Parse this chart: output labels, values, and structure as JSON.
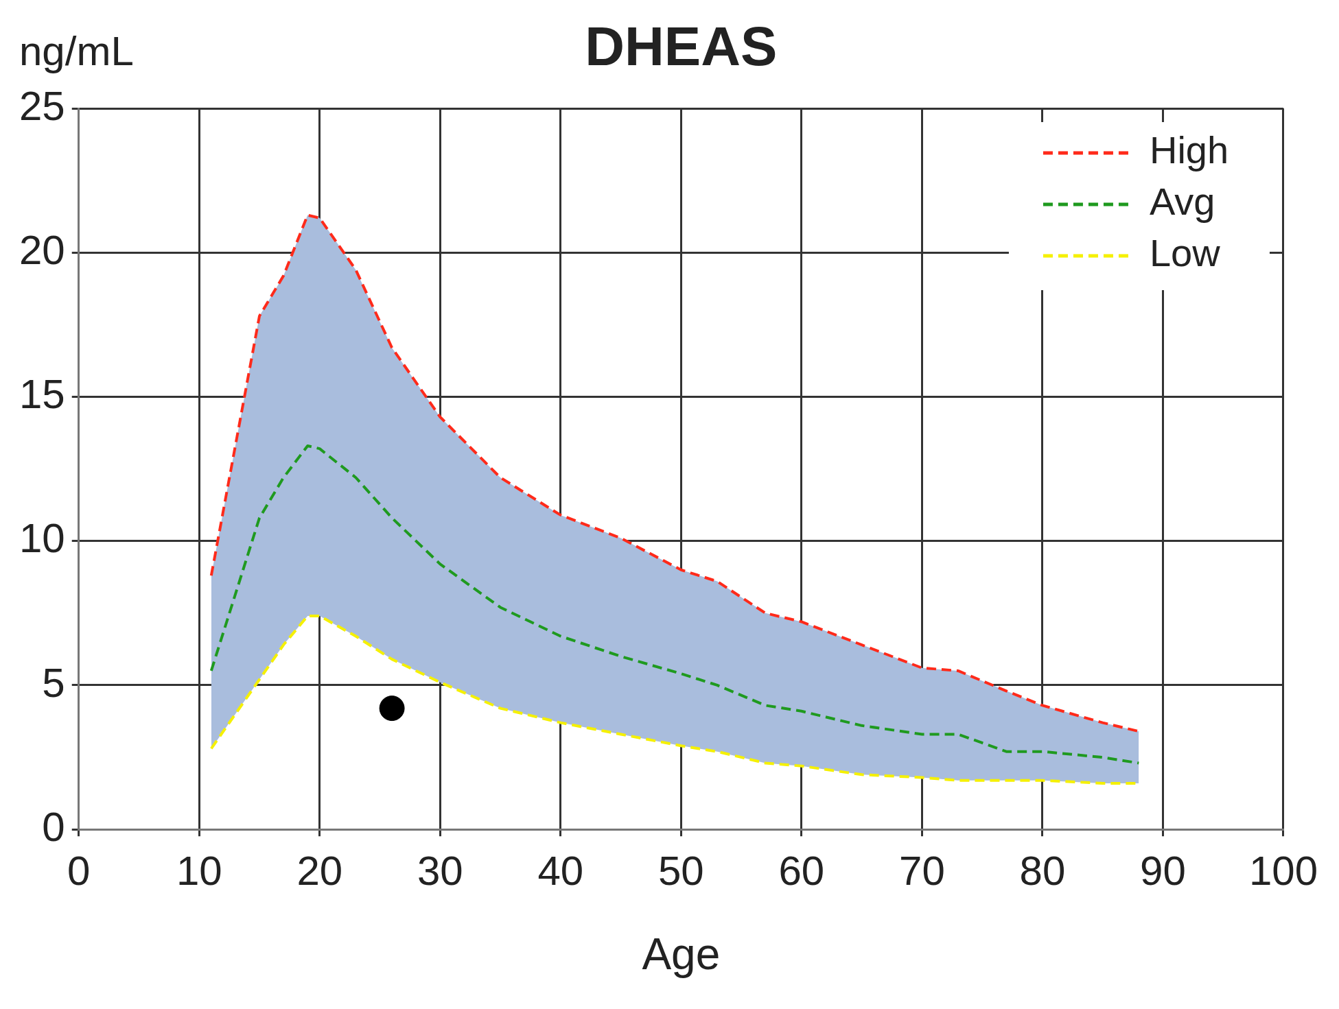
{
  "chart_data": {
    "type": "line",
    "title": "DHEAS",
    "xlabel": "Age",
    "ylabel": "ng/mL",
    "xlim": [
      0,
      100
    ],
    "xticks": [
      0,
      10,
      20,
      30,
      40,
      50,
      60,
      70,
      80,
      90,
      100
    ],
    "ylim": [
      0,
      25
    ],
    "yticks": [
      0,
      5,
      10,
      15,
      20,
      25
    ],
    "grid": true,
    "legend": "top right",
    "marker": "none",
    "line_style": "dashed",
    "x": [
      11,
      15,
      17,
      19,
      20,
      23,
      26,
      30,
      35,
      40,
      45,
      50,
      53,
      57,
      60,
      65,
      70,
      73,
      77,
      80,
      85,
      88
    ],
    "series": [
      {
        "name": "High",
        "color": "#ff2a1a",
        "values": [
          8.8,
          17.8,
          19.2,
          21.3,
          21.2,
          19.4,
          16.7,
          14.3,
          12.2,
          10.9,
          10.1,
          9.0,
          8.6,
          7.5,
          7.2,
          6.4,
          5.6,
          5.5,
          4.8,
          4.3,
          3.7,
          3.4
        ]
      },
      {
        "name": "Avg",
        "color": "#1f9a1f",
        "values": [
          5.5,
          10.8,
          12.2,
          13.3,
          13.2,
          12.2,
          10.8,
          9.2,
          7.7,
          6.7,
          6.0,
          5.4,
          5.0,
          4.3,
          4.1,
          3.6,
          3.3,
          3.3,
          2.7,
          2.7,
          2.5,
          2.3
        ],
        "lower": [
          2.8,
          5.2,
          6.4,
          7.4,
          7.4,
          6.7,
          5.9,
          5.1,
          4.2,
          3.7,
          3.3,
          2.9,
          2.7,
          2.3,
          2.2,
          1.9,
          1.8,
          1.7,
          1.7,
          1.7,
          1.6,
          1.6
        ],
        "upper": [
          8.8,
          17.8,
          19.2,
          21.3,
          21.2,
          19.4,
          16.7,
          14.3,
          12.2,
          10.9,
          10.1,
          9.0,
          8.6,
          7.5,
          7.2,
          6.4,
          5.6,
          5.5,
          4.8,
          4.3,
          3.7,
          3.4
        ]
      },
      {
        "name": "Low",
        "color": "#f5f000",
        "values": [
          2.8,
          5.2,
          6.4,
          7.4,
          7.4,
          6.7,
          5.9,
          5.1,
          4.2,
          3.7,
          3.3,
          2.9,
          2.7,
          2.3,
          2.2,
          1.9,
          1.8,
          1.7,
          1.7,
          1.7,
          1.6,
          1.6
        ]
      },
      {
        "type": "scatter",
        "color": "#000000",
        "x": [
          26
        ],
        "values": [
          4.2
        ],
        "marker": "circle"
      }
    ]
  }
}
